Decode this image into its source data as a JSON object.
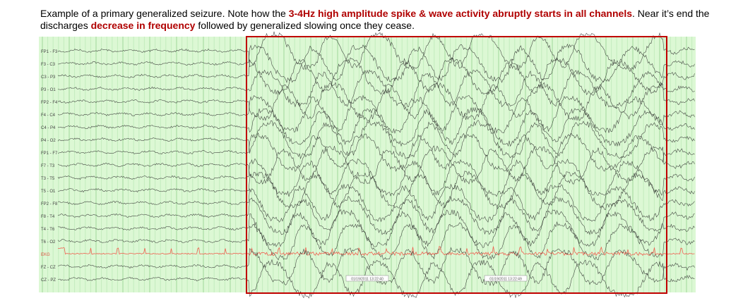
{
  "caption": {
    "part1": "Example of a primary generalized seizure. Note how the ",
    "highlight1": "3-4Hz high amplitude spike & wave activity abruptly starts in all channels",
    "part2": ". Near it’s end the discharges ",
    "highlight2": "decrease in frequency",
    "part3": " followed by generalized slowing once they cease."
  },
  "eeg": {
    "channels": [
      "FP1 - F3",
      "F3 - C3",
      "C3 - P3",
      "P3 - O1",
      "FP2 - F4",
      "F4 - C4",
      "C4 - P4",
      "P4 - O2",
      "FP1 - F7",
      "F7 - T3",
      "T3 - T5",
      "T5 - O1",
      "FP2 - F8",
      "F8 - T4",
      "T4 - T6",
      "T6 - O2",
      "EKG",
      "FZ - CZ",
      "CZ - PZ"
    ],
    "timestamps": [
      "01/19/2011 13:22:40",
      "01/19/2011 13:22:49"
    ]
  }
}
